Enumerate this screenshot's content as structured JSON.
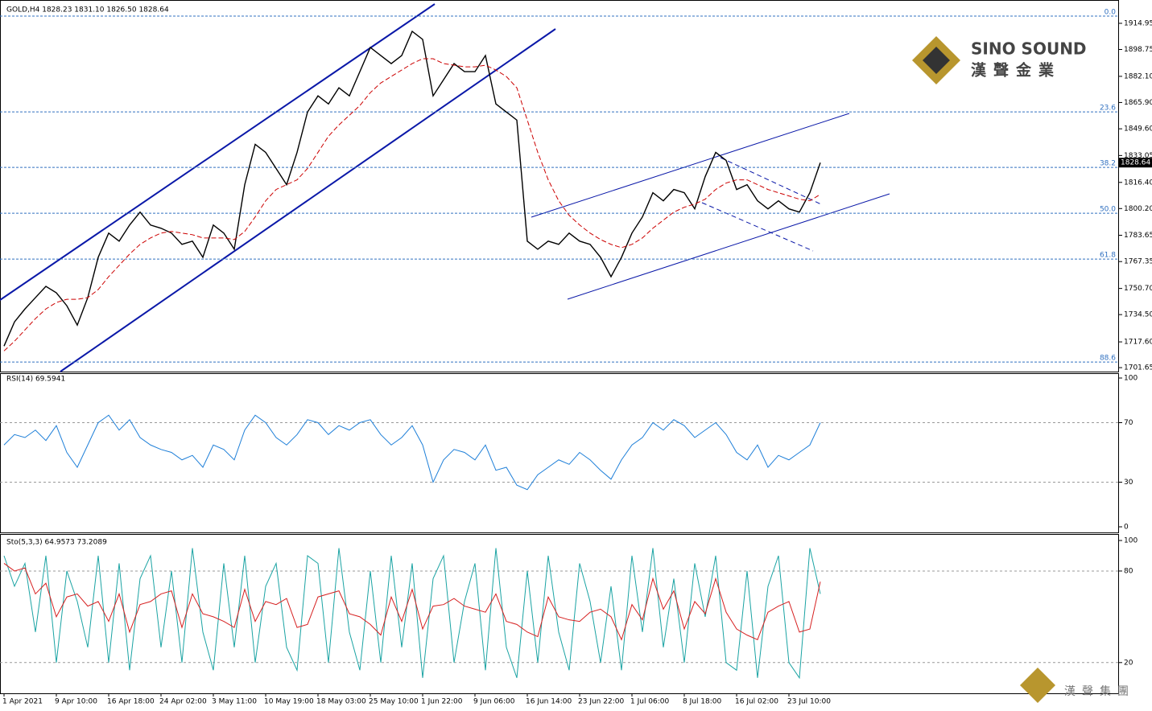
{
  "chart_data": [
    {
      "type": "line",
      "title": "GOLD,H4  1828.23 1831.10 1826.50 1828.64",
      "categories": [
        "1 Apr 2021",
        null,
        null,
        null,
        null,
        "9 Apr 10:00",
        null,
        null,
        null,
        null,
        "16 Apr 18:00",
        null,
        null,
        null,
        null,
        "24 Apr 02:00",
        null,
        null,
        null,
        null,
        "3 May 11:00",
        null,
        null,
        null,
        null,
        "10 May 19:00",
        null,
        null,
        null,
        null,
        "18 May 03:00",
        null,
        null,
        null,
        null,
        "25 May 10:00",
        null,
        null,
        null,
        null,
        "1 Jun 22:00",
        null,
        null,
        null,
        null,
        "9 Jun 06:00",
        null,
        null,
        null,
        null,
        "16 Jun 14:00",
        null,
        null,
        null,
        null,
        "23 Jun 22:00",
        null,
        null,
        null,
        null,
        "1 Jul 06:00",
        null,
        null,
        null,
        null,
        "8 Jul 18:00",
        null,
        null,
        null,
        null,
        "16 Jul 02:00",
        null,
        null,
        null,
        null,
        "23 Jul 10:00",
        null,
        null,
        null
      ],
      "series": [
        {
          "color": "#000000",
          "values": [
            1715,
            1730,
            1738,
            1745,
            1752,
            1748,
            1740,
            1728,
            1745,
            1770,
            1785,
            1780,
            1790,
            1798,
            1790,
            1788,
            1785,
            1778,
            1780,
            1770,
            1790,
            1785,
            1775,
            1815,
            1840,
            1835,
            1825,
            1815,
            1835,
            1860,
            1870,
            1865,
            1875,
            1870,
            1885,
            1900,
            1895,
            1890,
            1895,
            1910,
            1905,
            1870,
            1880,
            1890,
            1885,
            1885,
            1895,
            1865,
            1860,
            1855,
            1780,
            1775,
            1780,
            1778,
            1785,
            1780,
            1778,
            1770,
            1758,
            1770,
            1785,
            1795,
            1810,
            1805,
            1812,
            1810,
            1800,
            1820,
            1835,
            1830,
            1812,
            1815,
            1805,
            1800,
            1805,
            1800,
            1798,
            1810,
            1828.6
          ]
        },
        {
          "color": "#cc0000",
          "values": [
            1712,
            1718,
            1725,
            1732,
            1738,
            1742,
            1744,
            1744,
            1745,
            1750,
            1758,
            1765,
            1772,
            1778,
            1782,
            1785,
            1786,
            1785,
            1784,
            1782,
            1782,
            1782,
            1781,
            1786,
            1795,
            1805,
            1812,
            1815,
            1818,
            1825,
            1835,
            1845,
            1852,
            1858,
            1864,
            1872,
            1878,
            1882,
            1886,
            1890,
            1893,
            1893,
            1890,
            1889,
            1888,
            1888,
            1889,
            1886,
            1882,
            1875,
            1855,
            1835,
            1818,
            1805,
            1796,
            1790,
            1785,
            1781,
            1778,
            1776,
            1778,
            1782,
            1788,
            1793,
            1798,
            1801,
            1803,
            1806,
            1812,
            1816,
            1818,
            1818,
            1815,
            1812,
            1810,
            1808,
            1806,
            1805,
            1809
          ]
        }
      ],
      "ylim": [
        1699.2,
        1926.9
      ],
      "yticks": [
        {
          "value": 1701.65,
          "label": "1701.65"
        },
        {
          "value": 1717.6,
          "label": "1717.60"
        },
        {
          "value": 1734.5,
          "label": "1734.50"
        },
        {
          "value": 1750.7,
          "label": "1750.70"
        },
        {
          "value": 1767.35,
          "label": "1767.35"
        },
        {
          "value": 1783.65,
          "label": "1783.65"
        },
        {
          "value": 1800.2,
          "label": "1800.20"
        },
        {
          "value": 1816.4,
          "label": "1816.40"
        },
        {
          "value": 1833.05,
          "label": "1833.05"
        },
        {
          "value": 1849.6,
          "label": "1849.60"
        },
        {
          "value": 1865.9,
          "label": "1865.90"
        },
        {
          "value": 1882.1,
          "label": "1882.10"
        },
        {
          "value": 1898.75,
          "label": "1898.75"
        },
        {
          "value": 1914.95,
          "label": "1914.95"
        }
      ],
      "fib_levels": [
        {
          "value": 1919.4,
          "label": "0.0"
        },
        {
          "value": 1860.1,
          "label": "23.6"
        },
        {
          "value": 1825.7,
          "label": "38.2"
        },
        {
          "value": 1797.3,
          "label": "50.0"
        },
        {
          "value": 1768.9,
          "label": "61.8"
        },
        {
          "value": 1705.1,
          "label": "88.6"
        }
      ],
      "last_price": 1828.64
    },
    {
      "type": "line",
      "title": "RSI(14) 69.5941",
      "series": [
        {
          "color": "#1e7fd8",
          "values": [
            55,
            62,
            60,
            65,
            58,
            68,
            50,
            40,
            55,
            70,
            75,
            65,
            72,
            60,
            55,
            52,
            50,
            45,
            48,
            40,
            55,
            52,
            45,
            65,
            75,
            70,
            60,
            55,
            62,
            72,
            70,
            62,
            68,
            65,
            70,
            72,
            62,
            55,
            60,
            68,
            55,
            30,
            45,
            52,
            50,
            45,
            55,
            38,
            40,
            28,
            25,
            35,
            40,
            45,
            42,
            50,
            45,
            38,
            32,
            45,
            55,
            60,
            70,
            65,
            72,
            68,
            60,
            65,
            70,
            62,
            50,
            45,
            55,
            40,
            48,
            45,
            50,
            55,
            70
          ]
        }
      ],
      "ylim": [
        0,
        100
      ],
      "yticks": [
        0,
        30,
        70,
        100
      ],
      "grid_values": [
        30,
        70
      ]
    },
    {
      "type": "line",
      "title": "Sto(5,3,3) 64.9573 73.2089",
      "series": [
        {
          "color": "#1aa3a3",
          "values": [
            90,
            70,
            85,
            40,
            90,
            20,
            80,
            60,
            30,
            90,
            20,
            85,
            15,
            75,
            90,
            30,
            80,
            20,
            95,
            40,
            15,
            85,
            30,
            90,
            20,
            70,
            85,
            30,
            15,
            90,
            85,
            20,
            95,
            40,
            15,
            80,
            20,
            90,
            30,
            85,
            10,
            75,
            90,
            20,
            60,
            85,
            15,
            95,
            30,
            10,
            80,
            20,
            90,
            40,
            15,
            85,
            60,
            20,
            70,
            15,
            90,
            40,
            95,
            30,
            75,
            20,
            85,
            50,
            90,
            20,
            15,
            80,
            10,
            70,
            90,
            20,
            10,
            95,
            65
          ]
        },
        {
          "color": "#d62020",
          "values": [
            85,
            80,
            82,
            65,
            72,
            50,
            63,
            65,
            57,
            60,
            47,
            65,
            40,
            58,
            60,
            65,
            67,
            43,
            65,
            52,
            50,
            47,
            43,
            68,
            47,
            60,
            58,
            62,
            43,
            45,
            63,
            65,
            67,
            52,
            50,
            45,
            38,
            63,
            47,
            68,
            42,
            57,
            58,
            62,
            57,
            55,
            53,
            65,
            47,
            45,
            40,
            37,
            63,
            50,
            48,
            47,
            53,
            55,
            50,
            35,
            58,
            48,
            75,
            55,
            67,
            42,
            60,
            52,
            75,
            53,
            42,
            38,
            35,
            53,
            57,
            60,
            40,
            42,
            73
          ]
        }
      ],
      "ylim": [
        0,
        100
      ],
      "yticks": [
        20,
        80,
        100
      ],
      "grid_values": [
        20,
        80
      ]
    }
  ],
  "logo": {
    "title": "SINO SOUND",
    "subtitle": "漢聲金業",
    "footer": "漢聲集團"
  }
}
